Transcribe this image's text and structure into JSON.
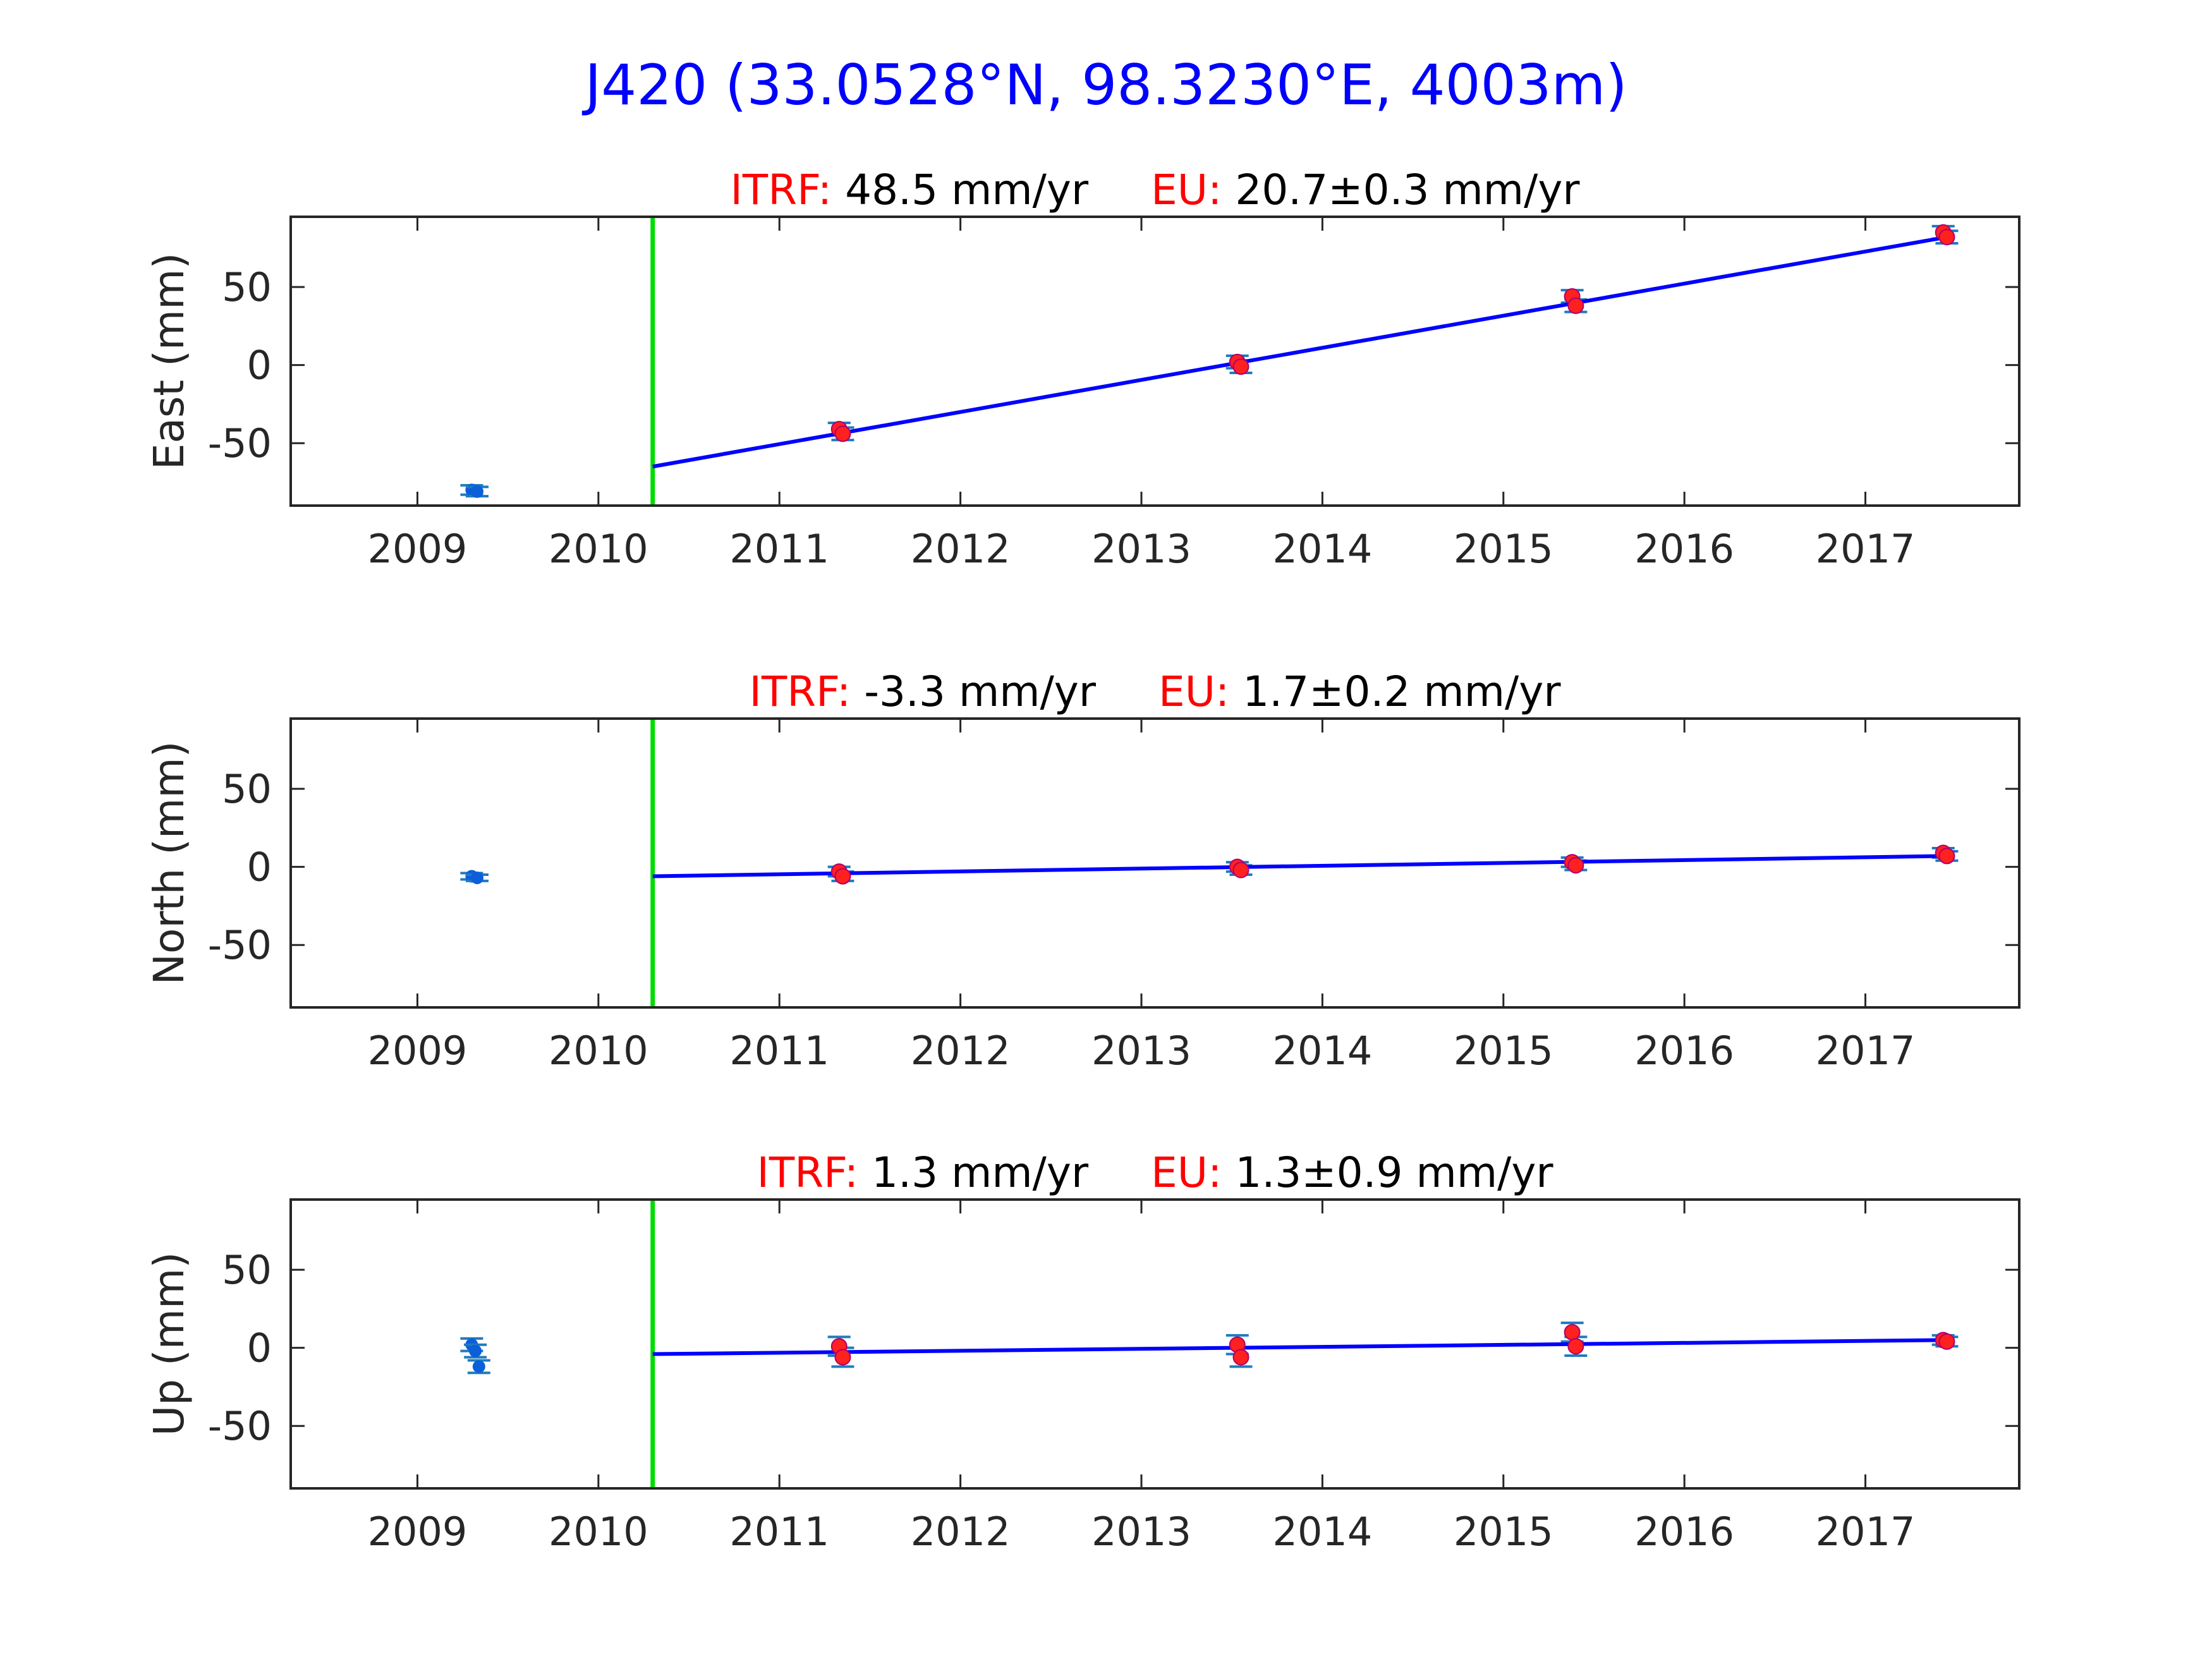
{
  "title": "J420 (33.0528°N, 98.3230°E, 4003m)",
  "colors": {
    "title": "#0000ff",
    "fit_line": "#0000ff",
    "offset_line": "#00dd00",
    "data_point": "#0b5fd8",
    "error_bar": "#1f7bbf",
    "model_point": "#ff2020",
    "label_red": "#ff0000"
  },
  "chart_data": [
    {
      "type": "scatter",
      "component": "east",
      "subtitle": {
        "itrf_label": "ITRF:",
        "itrf_value": "48.5 mm/yr",
        "eu_label": "EU:",
        "eu_value": "20.7±0.3 mm/yr"
      },
      "ylabel": "East (mm)",
      "xlim": [
        2008.3,
        2017.85
      ],
      "ylim": [
        -90,
        95
      ],
      "xticks": [
        2009,
        2010,
        2011,
        2012,
        2013,
        2014,
        2015,
        2016,
        2017
      ],
      "yticks": [
        -50,
        0,
        50
      ],
      "offset_epoch": 2010.3,
      "fit": {
        "x": [
          2010.3,
          2017.45
        ],
        "y": [
          -65,
          82
        ]
      },
      "points": [
        {
          "x": 2009.3,
          "y": -80,
          "err": 3
        },
        {
          "x": 2009.33,
          "y": -81,
          "err": 3
        },
        {
          "x": 2011.33,
          "y": -41,
          "err": 4
        },
        {
          "x": 2011.35,
          "y": -44,
          "err": 4
        },
        {
          "x": 2013.53,
          "y": 2,
          "err": 4
        },
        {
          "x": 2013.55,
          "y": -1,
          "err": 4
        },
        {
          "x": 2015.38,
          "y": 44,
          "err": 4
        },
        {
          "x": 2015.4,
          "y": 38,
          "err": 4
        },
        {
          "x": 2017.43,
          "y": 85,
          "err": 4
        },
        {
          "x": 2017.45,
          "y": 82,
          "err": 4
        }
      ],
      "model_points": [
        {
          "x": 2011.33,
          "y": -41
        },
        {
          "x": 2011.35,
          "y": -44
        },
        {
          "x": 2013.53,
          "y": 2
        },
        {
          "x": 2013.55,
          "y": -1
        },
        {
          "x": 2015.38,
          "y": 44
        },
        {
          "x": 2015.4,
          "y": 38
        },
        {
          "x": 2017.43,
          "y": 85
        },
        {
          "x": 2017.45,
          "y": 82
        }
      ]
    },
    {
      "type": "scatter",
      "component": "north",
      "subtitle": {
        "itrf_label": "ITRF:",
        "itrf_value": "-3.3 mm/yr",
        "eu_label": "EU:",
        "eu_value": "1.7±0.2 mm/yr"
      },
      "ylabel": "North (mm)",
      "xlim": [
        2008.3,
        2017.85
      ],
      "ylim": [
        -90,
        95
      ],
      "xticks": [
        2009,
        2010,
        2011,
        2012,
        2013,
        2014,
        2015,
        2016,
        2017
      ],
      "yticks": [
        -50,
        0,
        50
      ],
      "offset_epoch": 2010.3,
      "fit": {
        "x": [
          2010.3,
          2017.45
        ],
        "y": [
          -6,
          7
        ]
      },
      "points": [
        {
          "x": 2009.3,
          "y": -6,
          "err": 2
        },
        {
          "x": 2009.33,
          "y": -7,
          "err": 2
        },
        {
          "x": 2011.33,
          "y": -3,
          "err": 3
        },
        {
          "x": 2011.35,
          "y": -6,
          "err": 3
        },
        {
          "x": 2013.53,
          "y": 0,
          "err": 3
        },
        {
          "x": 2013.55,
          "y": -2,
          "err": 3
        },
        {
          "x": 2015.38,
          "y": 3,
          "err": 3
        },
        {
          "x": 2015.4,
          "y": 1,
          "err": 3
        },
        {
          "x": 2017.43,
          "y": 9,
          "err": 3
        },
        {
          "x": 2017.45,
          "y": 7,
          "err": 3
        }
      ],
      "model_points": [
        {
          "x": 2011.33,
          "y": -3
        },
        {
          "x": 2011.35,
          "y": -6
        },
        {
          "x": 2013.53,
          "y": 0
        },
        {
          "x": 2013.55,
          "y": -2
        },
        {
          "x": 2015.38,
          "y": 3
        },
        {
          "x": 2015.4,
          "y": 1
        },
        {
          "x": 2017.43,
          "y": 9
        },
        {
          "x": 2017.45,
          "y": 7
        }
      ]
    },
    {
      "type": "scatter",
      "component": "up",
      "subtitle": {
        "itrf_label": "ITRF:",
        "itrf_value": "1.3 mm/yr",
        "eu_label": "EU:",
        "eu_value": "1.3±0.9 mm/yr"
      },
      "ylabel": "Up (mm)",
      "xlim": [
        2008.3,
        2017.85
      ],
      "ylim": [
        -90,
        95
      ],
      "xticks": [
        2009,
        2010,
        2011,
        2012,
        2013,
        2014,
        2015,
        2016,
        2017
      ],
      "yticks": [
        -50,
        0,
        50
      ],
      "offset_epoch": 2010.3,
      "fit": {
        "x": [
          2010.3,
          2017.45
        ],
        "y": [
          -4,
          5
        ]
      },
      "points": [
        {
          "x": 2009.3,
          "y": 2,
          "err": 4
        },
        {
          "x": 2009.32,
          "y": -2,
          "err": 4
        },
        {
          "x": 2009.34,
          "y": -12,
          "err": 4
        },
        {
          "x": 2011.33,
          "y": 1,
          "err": 6
        },
        {
          "x": 2011.35,
          "y": -6,
          "err": 6
        },
        {
          "x": 2013.53,
          "y": 2,
          "err": 6
        },
        {
          "x": 2013.55,
          "y": -6,
          "err": 6
        },
        {
          "x": 2015.38,
          "y": 10,
          "err": 6
        },
        {
          "x": 2015.4,
          "y": 1,
          "err": 6
        },
        {
          "x": 2017.43,
          "y": 5,
          "err": 3
        },
        {
          "x": 2017.45,
          "y": 4,
          "err": 3
        }
      ],
      "model_points": [
        {
          "x": 2011.33,
          "y": 1
        },
        {
          "x": 2011.35,
          "y": -6
        },
        {
          "x": 2013.53,
          "y": 2
        },
        {
          "x": 2013.55,
          "y": -6
        },
        {
          "x": 2015.38,
          "y": 10
        },
        {
          "x": 2015.4,
          "y": 1
        },
        {
          "x": 2017.43,
          "y": 5
        },
        {
          "x": 2017.45,
          "y": 4
        }
      ]
    }
  ]
}
